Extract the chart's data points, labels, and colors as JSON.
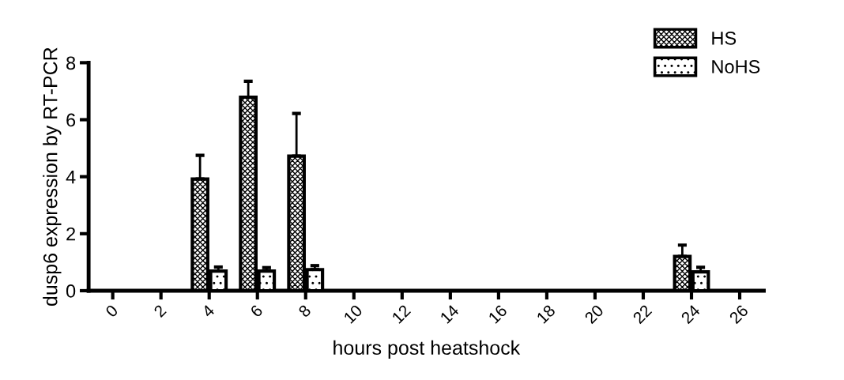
{
  "chart_data": {
    "type": "bar",
    "xlabel": "hours post heatshock",
    "ylabel": "dusp6 expression by RT-PCR",
    "categories": [
      "0",
      "2",
      "4",
      "6",
      "8",
      "10",
      "12",
      "14",
      "16",
      "18",
      "20",
      "22",
      "24",
      "26"
    ],
    "series": [
      {
        "name": "HS",
        "color": "#000000",
        "values": [
          null,
          null,
          3.92,
          6.79,
          4.72,
          null,
          null,
          null,
          null,
          null,
          null,
          null,
          1.2,
          null
        ],
        "errors": [
          null,
          null,
          0.83,
          0.56,
          1.5,
          null,
          null,
          null,
          null,
          null,
          null,
          null,
          0.4,
          null
        ]
      },
      {
        "name": "NoHS",
        "color": "#000000",
        "values": [
          null,
          null,
          0.69,
          0.69,
          0.74,
          null,
          null,
          null,
          null,
          null,
          null,
          null,
          0.66,
          null
        ],
        "errors": [
          null,
          null,
          0.14,
          0.12,
          0.14,
          null,
          null,
          null,
          null,
          null,
          null,
          null,
          0.16,
          null
        ]
      }
    ],
    "ylim": [
      0,
      8
    ],
    "yticks": [
      0,
      2,
      4,
      6,
      8
    ],
    "grid": false,
    "legend": "top right"
  }
}
